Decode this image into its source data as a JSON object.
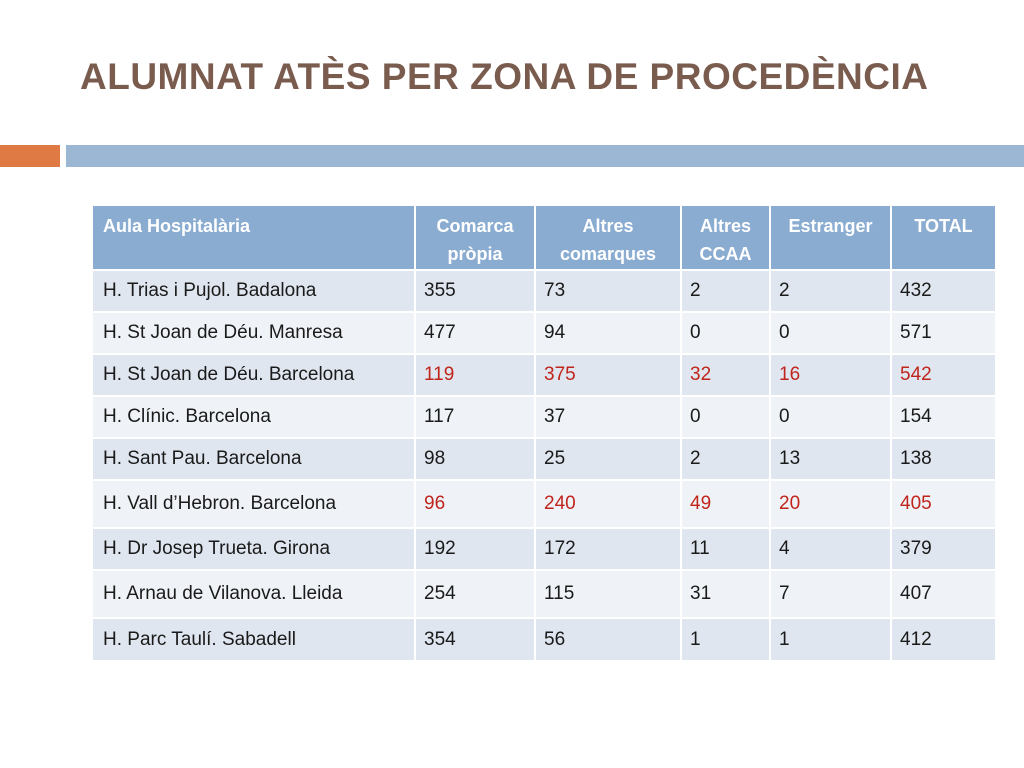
{
  "title": "ALUMNAT ATÈS PER ZONA DE PROCEDÈNCIA",
  "colors": {
    "title": "#7a5c4f",
    "accent_orange": "#e07a44",
    "accent_blue": "#9cb7d3",
    "header_bg": "#8aacd0",
    "highlight_text": "#c0251c"
  },
  "table": {
    "headers": [
      "Aula Hospitalària",
      "Comarca pròpia",
      "Altres comarques",
      "Altres CCAA",
      "Estranger",
      "TOTAL"
    ],
    "rows": [
      {
        "cells": [
          "H. Trias i Pujol. Badalona",
          "355",
          "73",
          "2",
          "2",
          "432"
        ],
        "highlight": false
      },
      {
        "cells": [
          "H. St Joan de Déu. Manresa",
          "477",
          "94",
          "0",
          "0",
          "571"
        ],
        "highlight": false
      },
      {
        "cells": [
          "H. St Joan de Déu. Barcelona",
          "119",
          "375",
          "32",
          "16",
          "542"
        ],
        "highlight": true
      },
      {
        "cells": [
          "H. Clínic. Barcelona",
          "117",
          "37",
          "0",
          "0",
          "154"
        ],
        "highlight": false
      },
      {
        "cells": [
          "H. Sant Pau. Barcelona",
          "98",
          "25",
          "2",
          "13",
          "138"
        ],
        "highlight": false
      },
      {
        "cells": [
          "H. Vall d’Hebron. Barcelona",
          "96",
          "240",
          "49",
          "20",
          "405"
        ],
        "highlight": true
      },
      {
        "cells": [
          "H. Dr Josep Trueta. Girona",
          "192",
          "172",
          "11",
          "4",
          "379"
        ],
        "highlight": false
      },
      {
        "cells": [
          "H. Arnau de Vilanova. Lleida",
          "254",
          "115",
          "31",
          "7",
          "407"
        ],
        "highlight": false
      },
      {
        "cells": [
          "H. Parc Taulí. Sabadell",
          "354",
          "56",
          "1",
          "1",
          "412"
        ],
        "highlight": false
      }
    ]
  }
}
